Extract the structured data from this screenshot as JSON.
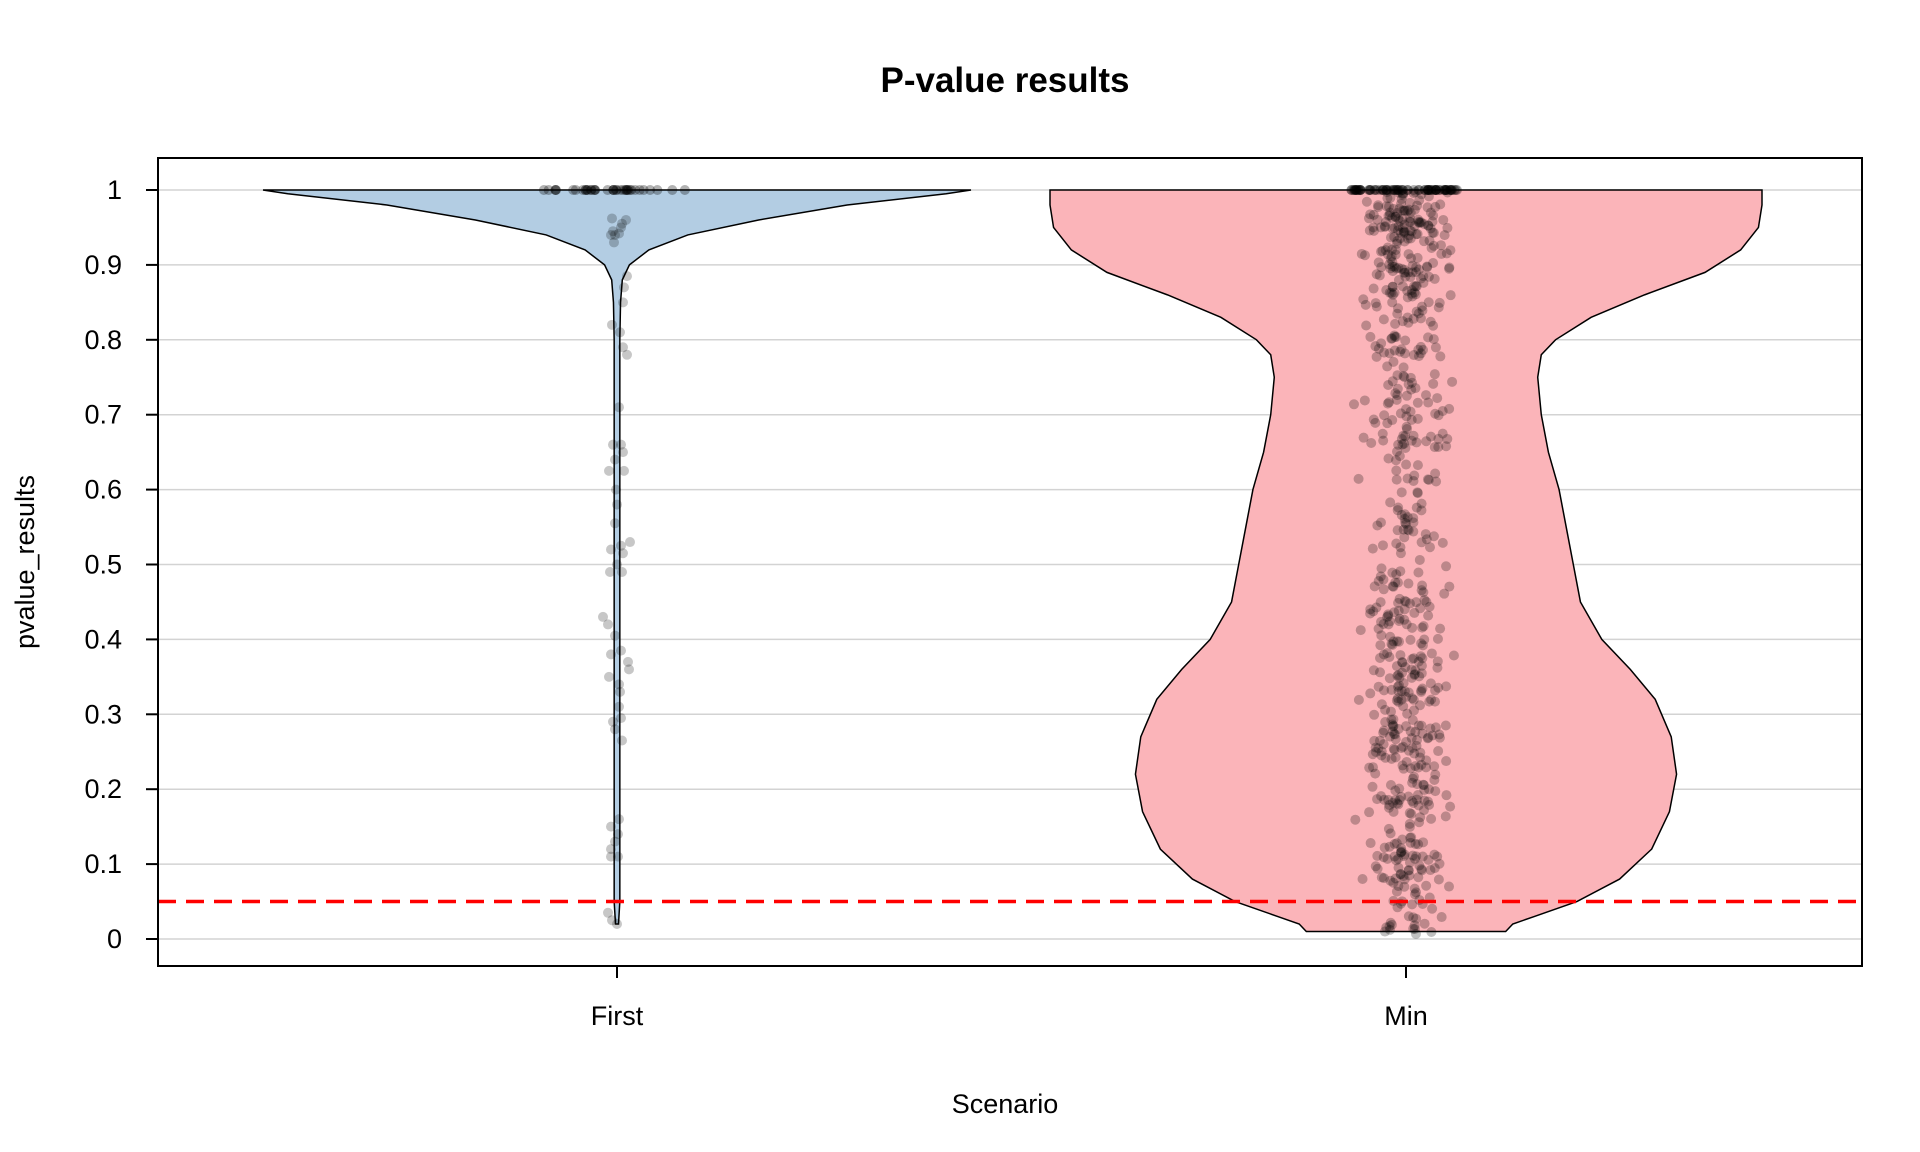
{
  "chart_data": {
    "type": "violin",
    "title": "P-value results",
    "xlabel": "Scenario",
    "ylabel": "pvalue_results",
    "categories": [
      "First",
      "Min"
    ],
    "ylim": [
      -0.04,
      1.04
    ],
    "yticks": [
      0,
      0.1,
      0.2,
      0.3,
      0.4,
      0.5,
      0.6,
      0.7,
      0.8,
      0.9,
      1
    ],
    "ytick_labels": [
      "0",
      "0.1",
      "0.2",
      "0.3",
      "0.4",
      "0.5",
      "0.6",
      "0.7",
      "0.8",
      "0.9",
      "1"
    ],
    "grid": "horizontal",
    "reference_line": {
      "y": 0.05,
      "color": "#ff0000",
      "style": "dashed"
    },
    "series": [
      {
        "category": "First",
        "fill": "#b3cde3",
        "range": [
          0.02,
          1.0
        ],
        "density_profile": [
          [
            0.02,
            0.0
          ],
          [
            0.05,
            0.008
          ],
          [
            0.1,
            0.008
          ],
          [
            0.2,
            0.008
          ],
          [
            0.3,
            0.008
          ],
          [
            0.4,
            0.008
          ],
          [
            0.5,
            0.008
          ],
          [
            0.6,
            0.008
          ],
          [
            0.7,
            0.008
          ],
          [
            0.8,
            0.008
          ],
          [
            0.85,
            0.01
          ],
          [
            0.88,
            0.015
          ],
          [
            0.9,
            0.035
          ],
          [
            0.92,
            0.09
          ],
          [
            0.94,
            0.2
          ],
          [
            0.96,
            0.4
          ],
          [
            0.98,
            0.65
          ],
          [
            0.995,
            0.93
          ],
          [
            1.0,
            1.0
          ]
        ],
        "points": [
          [
            -0.05,
            0.82
          ],
          [
            0.03,
            0.81
          ],
          [
            0.06,
            0.79
          ],
          [
            0.1,
            0.78
          ],
          [
            0.06,
            0.85
          ],
          [
            0.07,
            0.87
          ],
          [
            0.1,
            0.885
          ],
          [
            0.02,
            0.71
          ],
          [
            -0.04,
            0.66
          ],
          [
            -0.02,
            0.64
          ],
          [
            0.04,
            0.66
          ],
          [
            0.06,
            0.65
          ],
          [
            -0.08,
            0.625
          ],
          [
            -0.01,
            0.6
          ],
          [
            0.07,
            0.625
          ],
          [
            0.0,
            0.58
          ],
          [
            -0.02,
            0.555
          ],
          [
            -0.06,
            0.52
          ],
          [
            0.04,
            0.525
          ],
          [
            0.06,
            0.515
          ],
          [
            0.13,
            0.53
          ],
          [
            0.0,
            0.5
          ],
          [
            -0.07,
            0.49
          ],
          [
            0.05,
            0.49
          ],
          [
            -0.14,
            0.43
          ],
          [
            -0.09,
            0.42
          ],
          [
            -0.02,
            0.405
          ],
          [
            -0.06,
            0.38
          ],
          [
            0.04,
            0.385
          ],
          [
            0.11,
            0.37
          ],
          [
            0.12,
            0.36
          ],
          [
            -0.08,
            0.35
          ],
          [
            0.02,
            0.34
          ],
          [
            0.03,
            0.33
          ],
          [
            0.02,
            0.31
          ],
          [
            0.04,
            0.295
          ],
          [
            -0.04,
            0.29
          ],
          [
            -0.02,
            0.28
          ],
          [
            0.05,
            0.265
          ],
          [
            0.02,
            0.16
          ],
          [
            -0.06,
            0.15
          ],
          [
            0.01,
            0.14
          ],
          [
            -0.02,
            0.13
          ],
          [
            -0.06,
            0.12
          ],
          [
            -0.06,
            0.11
          ],
          [
            0.01,
            0.11
          ],
          [
            -0.09,
            0.035
          ],
          [
            -0.05,
            0.025
          ],
          [
            0.0,
            0.02
          ],
          [
            -0.05,
            0.962
          ],
          [
            -0.04,
            0.945
          ],
          [
            -0.02,
            0.94
          ],
          [
            -0.06,
            0.94
          ],
          [
            0.04,
            0.95
          ],
          [
            0.05,
            0.955
          ],
          [
            0.09,
            0.96
          ],
          [
            -0.03,
            0.93
          ],
          [
            0.02,
            0.942
          ]
        ]
      },
      {
        "category": "Min",
        "fill": "#fbb4b9",
        "range": [
          0.01,
          1.0
        ],
        "density_profile": [
          [
            0.01,
            0.28
          ],
          [
            0.02,
            0.3
          ],
          [
            0.03,
            0.36
          ],
          [
            0.05,
            0.48
          ],
          [
            0.08,
            0.6
          ],
          [
            0.12,
            0.69
          ],
          [
            0.17,
            0.74
          ],
          [
            0.22,
            0.76
          ],
          [
            0.27,
            0.745
          ],
          [
            0.32,
            0.7
          ],
          [
            0.36,
            0.63
          ],
          [
            0.4,
            0.55
          ],
          [
            0.45,
            0.49
          ],
          [
            0.5,
            0.47
          ],
          [
            0.55,
            0.45
          ],
          [
            0.6,
            0.43
          ],
          [
            0.65,
            0.4
          ],
          [
            0.7,
            0.38
          ],
          [
            0.75,
            0.37
          ],
          [
            0.78,
            0.38
          ],
          [
            0.8,
            0.42
          ],
          [
            0.83,
            0.52
          ],
          [
            0.86,
            0.67
          ],
          [
            0.89,
            0.84
          ],
          [
            0.92,
            0.94
          ],
          [
            0.95,
            0.99
          ],
          [
            0.98,
            1.0
          ],
          [
            1.0,
            1.0
          ]
        ]
      }
    ]
  }
}
